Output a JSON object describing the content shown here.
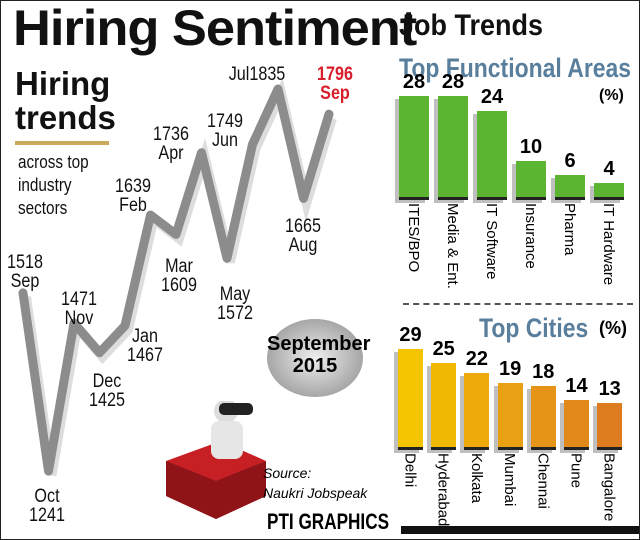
{
  "title": "Hiring Sentiment",
  "left_panel": {
    "heading": "Hiring trends",
    "subheading": "across top industry sectors",
    "badge": "September 2015",
    "source_label": "Source:",
    "source": "Naukri Jobspeak",
    "credit": "PTI GRAPHICS"
  },
  "right_panel": {
    "heading": "Job Trends"
  },
  "colors": {
    "line": "#8c8c8c",
    "highlight": "#d81e2a",
    "functional_bars": "#5cb531",
    "city_bars": "#e8a514",
    "subheading": "#5a7f9c"
  },
  "chart_data": [
    {
      "type": "line",
      "title": "Hiring trends",
      "x": [
        "Sep",
        "Oct",
        "Nov",
        "Dec",
        "Jan",
        "Feb",
        "Mar",
        "Apr",
        "May",
        "Jun",
        "Jul",
        "Aug",
        "Sep"
      ],
      "values": [
        1518,
        1241,
        1471,
        1425,
        1467,
        1639,
        1609,
        1736,
        1572,
        1749,
        1835,
        1665,
        1796
      ],
      "labels": [
        "1518 Sep",
        "Oct 1241",
        "1471 Nov",
        "Dec 1425",
        "Jan 1467",
        "1639 Feb",
        "Mar 1609",
        "1736 Apr",
        "May 1572",
        "1749 Jun",
        "Jul1835",
        "1665 Aug",
        "1796 Sep"
      ]
    },
    {
      "type": "bar",
      "title": "Top Functional Areas",
      "unit": "(%)",
      "categories": [
        "ITES/BPO",
        "Media & Ent.",
        "IT Software",
        "Insurance",
        "Pharma",
        "IT Hardware"
      ],
      "values": [
        28,
        28,
        24,
        10,
        6,
        4
      ]
    },
    {
      "type": "bar",
      "title": "Top Cities",
      "unit": "(%)",
      "categories": [
        "Delhi",
        "Hyderabad",
        "Kolkata",
        "Mumbai",
        "Chennai",
        "Pune",
        "Bangalore"
      ],
      "values": [
        29,
        25,
        22,
        19,
        18,
        14,
        13
      ]
    }
  ]
}
